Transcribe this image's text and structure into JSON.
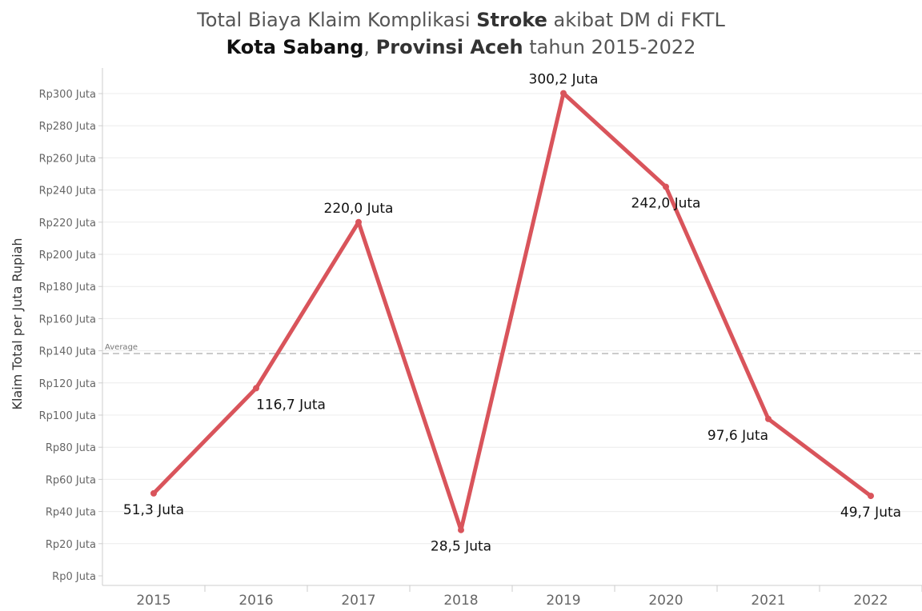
{
  "title": {
    "line1": [
      {
        "text": "Total Biaya Klaim Komplikasi ",
        "style": "normal"
      },
      {
        "text": "Stroke",
        "style": "bold"
      },
      {
        "text": " akibat DM di FKTL",
        "style": "normal"
      }
    ],
    "line2": [
      {
        "text": "Kota Sabang",
        "style": "boldblack"
      },
      {
        "text": ", ",
        "style": "normal"
      },
      {
        "text": "Provinsi Aceh",
        "style": "bold"
      },
      {
        "text": " tahun 2015-2022",
        "style": "normal"
      }
    ]
  },
  "colors": {
    "line": "#d9545b",
    "grid": "#ececec",
    "axis": "#cccccc",
    "average": "#bbbbbb"
  },
  "chart_data": {
    "type": "line",
    "ylabel": "Klaim Total per Juta Rupiah",
    "xlabel": "",
    "ylim": [
      0,
      300
    ],
    "grid": true,
    "categories": [
      "2015",
      "2016",
      "2017",
      "2018",
      "2019",
      "2020",
      "2021",
      "2022"
    ],
    "values": [
      51.3,
      116.7,
      220.0,
      28.5,
      300.2,
      242.0,
      97.6,
      49.7
    ],
    "data_labels": [
      "51,3 Juta",
      "116,7 Juta",
      "220,0 Juta",
      "28,5 Juta",
      "300,2 Juta",
      "242,0 Juta",
      "97,6 Juta",
      "49,7 Juta"
    ],
    "y_ticks": [
      {
        "value": 0,
        "label": "Rp0 Juta"
      },
      {
        "value": 20,
        "label": "Rp20 Juta"
      },
      {
        "value": 40,
        "label": "Rp40 Juta"
      },
      {
        "value": 60,
        "label": "Rp60 Juta"
      },
      {
        "value": 80,
        "label": "Rp80 Juta"
      },
      {
        "value": 100,
        "label": "Rp100 Juta"
      },
      {
        "value": 120,
        "label": "Rp120 Juta"
      },
      {
        "value": 140,
        "label": "Rp140 Juta"
      },
      {
        "value": 160,
        "label": "Rp160 Juta"
      },
      {
        "value": 180,
        "label": "Rp180 Juta"
      },
      {
        "value": 200,
        "label": "Rp200 Juta"
      },
      {
        "value": 220,
        "label": "Rp220 Juta"
      },
      {
        "value": 240,
        "label": "Rp240 Juta"
      },
      {
        "value": 260,
        "label": "Rp260 Juta"
      },
      {
        "value": 280,
        "label": "Rp280 Juta"
      },
      {
        "value": 300,
        "label": "Rp300 Juta"
      }
    ],
    "reference_line": {
      "label": "Average",
      "value": 138.25
    }
  }
}
